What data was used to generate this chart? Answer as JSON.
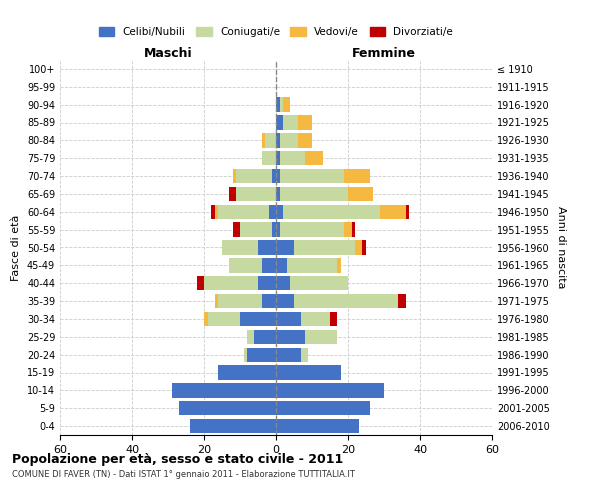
{
  "age_groups": [
    "0-4",
    "5-9",
    "10-14",
    "15-19",
    "20-24",
    "25-29",
    "30-34",
    "35-39",
    "40-44",
    "45-49",
    "50-54",
    "55-59",
    "60-64",
    "65-69",
    "70-74",
    "75-79",
    "80-84",
    "85-89",
    "90-94",
    "95-99",
    "100+"
  ],
  "birth_years": [
    "2006-2010",
    "2001-2005",
    "1996-2000",
    "1991-1995",
    "1986-1990",
    "1981-1985",
    "1976-1980",
    "1971-1975",
    "1966-1970",
    "1961-1965",
    "1956-1960",
    "1951-1955",
    "1946-1950",
    "1941-1945",
    "1936-1940",
    "1931-1935",
    "1926-1930",
    "1921-1925",
    "1916-1920",
    "1911-1915",
    "≤ 1910"
  ],
  "colors": {
    "celibi": "#4472C4",
    "coniugati": "#C5D9A0",
    "vedovi": "#F5B942",
    "divorziati": "#C00000"
  },
  "males": {
    "celibi": [
      24,
      27,
      29,
      16,
      8,
      6,
      10,
      4,
      5,
      4,
      5,
      1,
      2,
      0,
      1,
      0,
      0,
      0,
      0,
      0,
      0
    ],
    "coniugati": [
      0,
      0,
      0,
      0,
      1,
      2,
      9,
      12,
      15,
      9,
      10,
      9,
      14,
      11,
      10,
      4,
      3,
      0,
      0,
      0,
      0
    ],
    "vedovi": [
      0,
      0,
      0,
      0,
      0,
      0,
      1,
      1,
      0,
      0,
      0,
      0,
      1,
      0,
      1,
      0,
      1,
      0,
      0,
      0,
      0
    ],
    "divorziati": [
      0,
      0,
      0,
      0,
      0,
      0,
      0,
      0,
      2,
      0,
      0,
      2,
      1,
      2,
      0,
      0,
      0,
      0,
      0,
      0,
      0
    ]
  },
  "females": {
    "celibi": [
      23,
      26,
      30,
      18,
      7,
      8,
      7,
      5,
      4,
      3,
      5,
      1,
      2,
      1,
      1,
      1,
      1,
      2,
      1,
      0,
      0
    ],
    "coniugati": [
      0,
      0,
      0,
      0,
      2,
      9,
      8,
      29,
      16,
      14,
      17,
      18,
      27,
      19,
      18,
      7,
      5,
      4,
      1,
      0,
      0
    ],
    "vedovi": [
      0,
      0,
      0,
      0,
      0,
      0,
      0,
      0,
      0,
      1,
      2,
      2,
      7,
      7,
      7,
      5,
      4,
      4,
      2,
      0,
      0
    ],
    "divorziati": [
      0,
      0,
      0,
      0,
      0,
      0,
      2,
      2,
      0,
      0,
      1,
      1,
      1,
      0,
      0,
      0,
      0,
      0,
      0,
      0,
      0
    ]
  },
  "title": "Popolazione per età, sesso e stato civile - 2011",
  "subtitle": "COMUNE DI FAVER (TN) - Dati ISTAT 1° gennaio 2011 - Elaborazione TUTTITALIA.IT",
  "xlabel_left": "Maschi",
  "xlabel_right": "Femmine",
  "ylabel_left": "Fasce di età",
  "ylabel_right": "Anni di nascita",
  "xlim": 60,
  "legend_labels": [
    "Celibi/Nubili",
    "Coniugati/e",
    "Vedovi/e",
    "Divorziati/e"
  ]
}
